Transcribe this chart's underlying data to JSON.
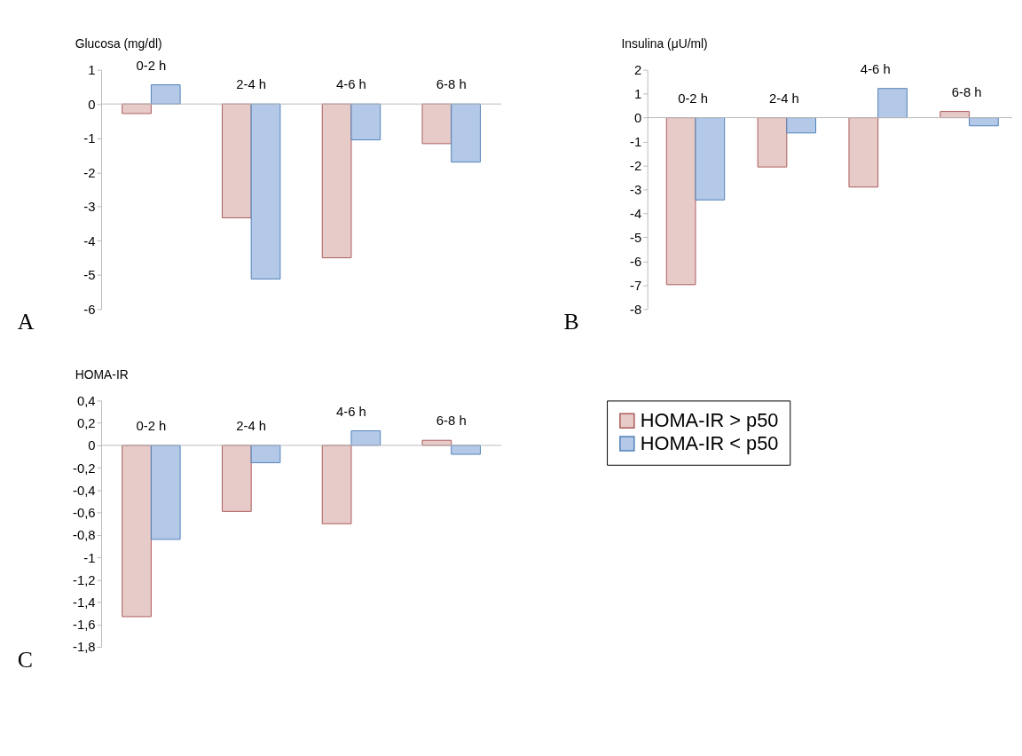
{
  "chart_data": [
    {
      "type": "bar",
      "ylabel": "Glucosa (mg/dl)",
      "categories": [
        "0-2 h",
        "2-4 h",
        "4-6 h",
        "6-8 h"
      ],
      "series": [
        {
          "color": "#e6cbc8",
          "values": [
            -0.28,
            -3.33,
            -4.5,
            -1.16
          ]
        },
        {
          "color": "#b4c8e8",
          "values": [
            0.56,
            -5.12,
            -1.05,
            -1.7
          ]
        }
      ],
      "ylim": [
        -6,
        1
      ],
      "yticks": [
        -6,
        -5,
        -4,
        -3,
        -2,
        -1,
        0,
        1
      ],
      "grid": false,
      "legend": false,
      "annotations": [
        "A"
      ]
    },
    {
      "type": "bar",
      "ylabel": "Insulina (μU/ml)",
      "categories": [
        "0-2 h",
        "2-4 h",
        "4-6 h",
        "6-8 h"
      ],
      "series": [
        {
          "color": "#e6cbc8",
          "values": [
            -6.98,
            -2.06,
            -2.9,
            0.26
          ]
        },
        {
          "color": "#b4c8e8",
          "values": [
            -3.44,
            -0.64,
            1.22,
            -0.34
          ]
        }
      ],
      "ylim": [
        -8,
        2
      ],
      "yticks": [
        -8,
        -7,
        -6,
        -5,
        -4,
        -3,
        -2,
        -1,
        0,
        1,
        2
      ],
      "grid": false,
      "legend": false,
      "annotations": [
        "B"
      ]
    },
    {
      "type": "bar",
      "ylabel": "HOMA-IR",
      "categories": [
        "0-2 h",
        "2-4 h",
        "4-6 h",
        "6-8 h"
      ],
      "series": [
        {
          "name": "HOMA-IR > p50",
          "color": "#e6cbc8",
          "values": [
            -1.53,
            -0.59,
            -0.7,
            0.045
          ]
        },
        {
          "name": "HOMA-IR < p50",
          "color": "#b4c8e8",
          "values": [
            -0.84,
            -0.155,
            0.13,
            -0.08
          ]
        }
      ],
      "ylim": [
        -1.8,
        0.4
      ],
      "yticks": [
        {
          "value": -1.8,
          "label": "-1,8"
        },
        {
          "value": -1.6,
          "label": "-1,6"
        },
        {
          "value": -1.4,
          "label": "-1,4"
        },
        {
          "value": -1.2,
          "label": "-1,2"
        },
        {
          "value": -1,
          "label": "-1"
        },
        {
          "value": -0.8,
          "label": "-0,8"
        },
        {
          "value": -0.6,
          "label": "-0,6"
        },
        {
          "value": -0.4,
          "label": "-0,4"
        },
        {
          "value": -0.2,
          "label": "-0,2"
        },
        {
          "value": 0,
          "label": "0"
        },
        {
          "value": 0.2,
          "label": "0,2"
        },
        {
          "value": 0.4,
          "label": "0,4"
        }
      ],
      "grid": false,
      "legend": "right",
      "annotations": [
        "C"
      ]
    }
  ]
}
